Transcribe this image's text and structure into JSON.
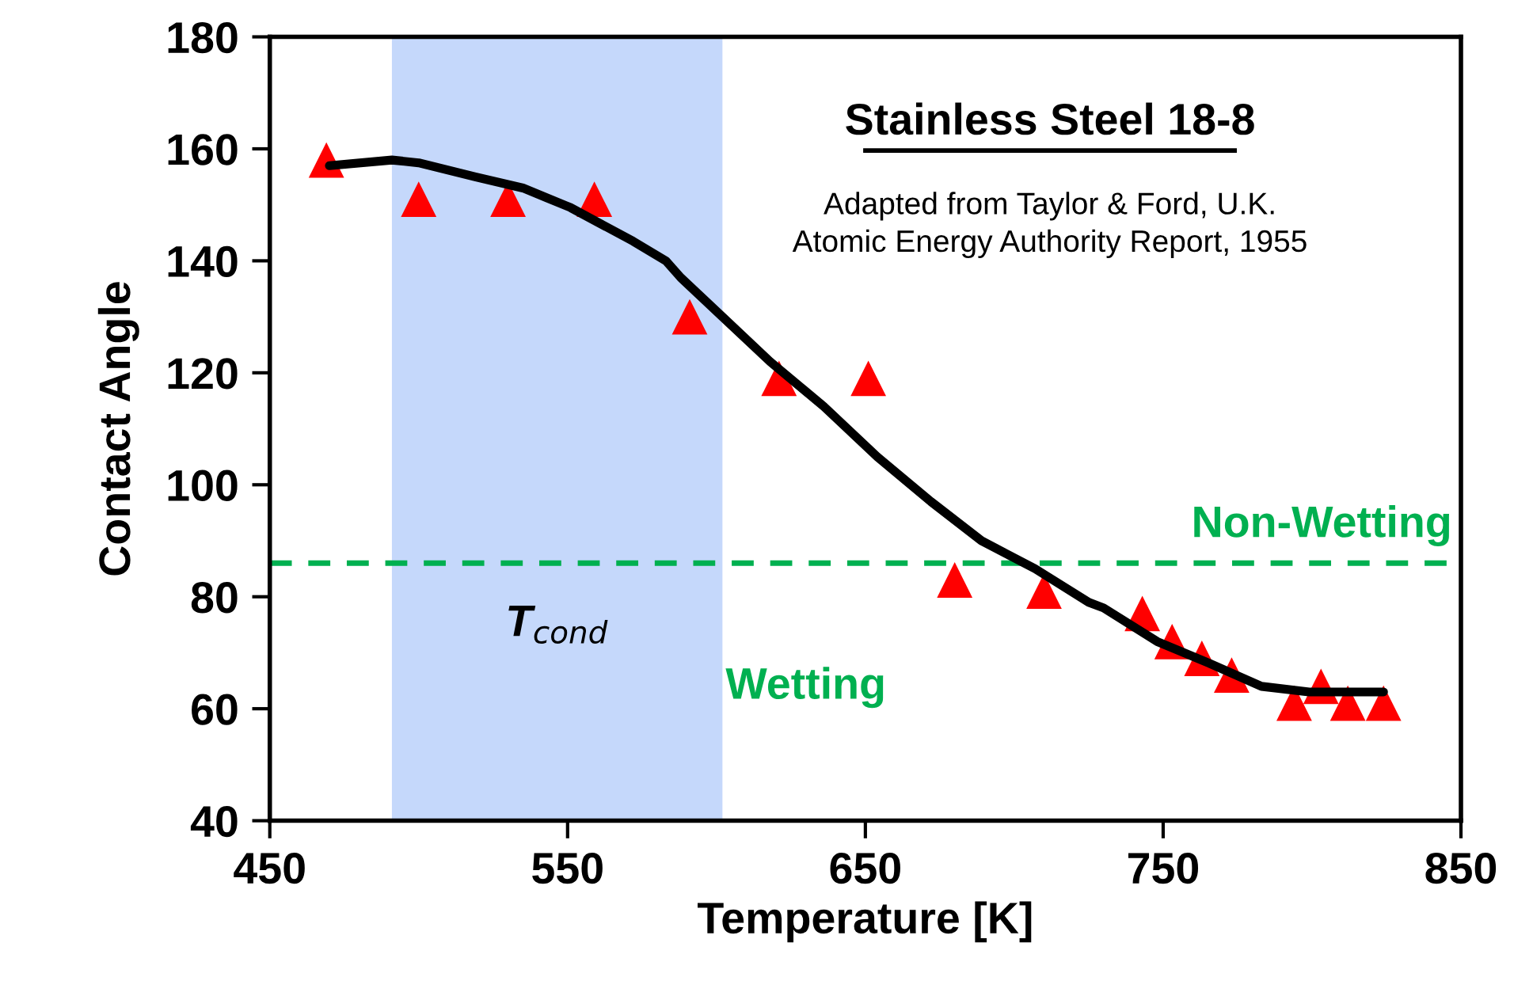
{
  "chart_data": {
    "type": "scatter",
    "title": "Stainless Steel 18-8",
    "xlabel": "Temperature [K]",
    "ylabel": "Contact Angle",
    "annotations": [
      "Adapted from Taylor & Ford, U.K.\nAtomic Energy Authority Report, 1955",
      "Wetting"
    ],
    "xlim": [
      450,
      850
    ],
    "ylim": [
      40,
      180
    ],
    "xticks": [
      450,
      550,
      650,
      750,
      850
    ],
    "yticks": [
      40,
      60,
      80,
      100,
      120,
      140,
      160,
      180
    ],
    "grid": false,
    "legend": false,
    "series": [
      {
        "type": "line",
        "color": "#000000",
        "marker": "none",
        "line_style": "solid",
        "x": [
          470,
          491,
          500,
          519,
          535,
          551,
          572,
          583,
          588,
          602,
          618,
          636,
          654,
          672,
          689,
          707,
          725,
          730,
          748,
          766,
          783,
          799,
          824
        ],
        "values": [
          157,
          158,
          157.5,
          155,
          153,
          149.5,
          143.5,
          140,
          137,
          130,
          122,
          114,
          105,
          97,
          90,
          85,
          79,
          78,
          72,
          68,
          64,
          63,
          63
        ]
      },
      {
        "color": "#ff0000",
        "marker": "triangle",
        "x": [
          469,
          500,
          530,
          559,
          591,
          621,
          651,
          680,
          710,
          743,
          753,
          763,
          773,
          794,
          803,
          812,
          824
        ],
        "values": [
          158,
          151,
          151,
          151,
          130,
          119,
          119,
          83,
          81,
          77,
          72,
          69,
          66,
          61,
          64,
          61,
          61
        ]
      }
    ],
    "bands": [
      {
        "axis": "x",
        "from": 491,
        "to": 602,
        "label": "T$_{cond}$",
        "color": "#c5d8fb"
      }
    ],
    "ref_lines": [
      {
        "axis": "y",
        "value": 86,
        "label": "Non-Wetting",
        "color": "#00b050",
        "line_style": "dashed"
      }
    ]
  }
}
